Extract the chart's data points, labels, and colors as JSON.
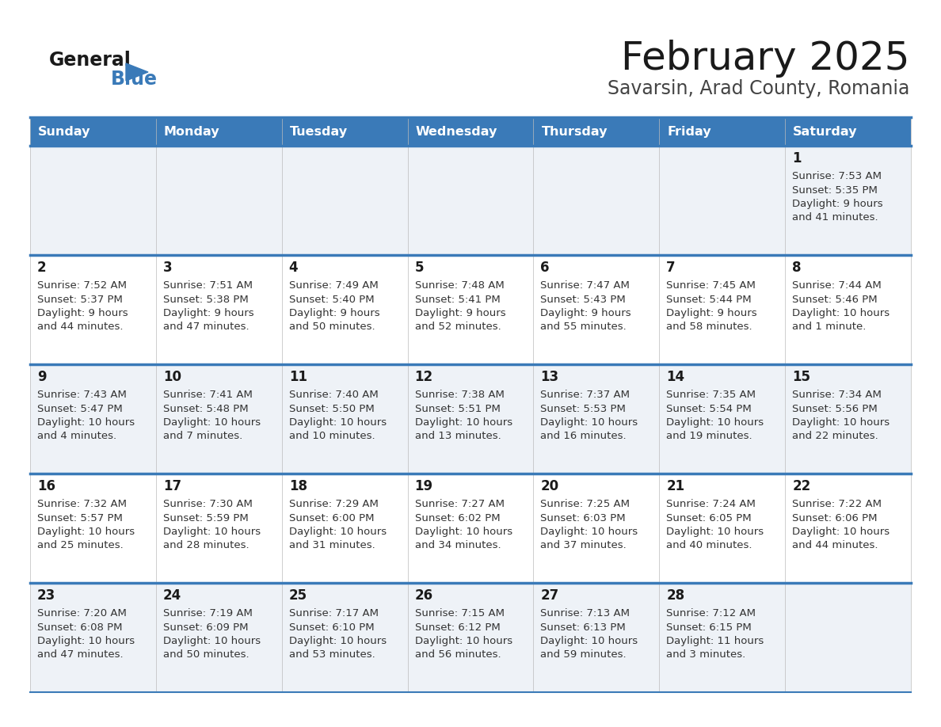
{
  "title": "February 2025",
  "subtitle": "Savarsin, Arad County, Romania",
  "days_of_week": [
    "Sunday",
    "Monday",
    "Tuesday",
    "Wednesday",
    "Thursday",
    "Friday",
    "Saturday"
  ],
  "header_bg_color": "#3a7ab8",
  "header_text_color": "#ffffff",
  "cell_bg_odd": "#eef2f7",
  "cell_bg_even": "#ffffff",
  "grid_line_color": "#3a7ab8",
  "day_number_color": "#1a1a1a",
  "text_color": "#333333",
  "title_color": "#1a1a1a",
  "subtitle_color": "#444444",
  "logo_black": "#1a1a1a",
  "logo_blue": "#3a7ab8",
  "calendar_data": [
    [
      null,
      null,
      null,
      null,
      null,
      null,
      {
        "day": "1",
        "sunrise": "7:53 AM",
        "sunset": "5:35 PM",
        "dl1": "Daylight: 9 hours",
        "dl2": "and 41 minutes."
      }
    ],
    [
      {
        "day": "2",
        "sunrise": "7:52 AM",
        "sunset": "5:37 PM",
        "dl1": "Daylight: 9 hours",
        "dl2": "and 44 minutes."
      },
      {
        "day": "3",
        "sunrise": "7:51 AM",
        "sunset": "5:38 PM",
        "dl1": "Daylight: 9 hours",
        "dl2": "and 47 minutes."
      },
      {
        "day": "4",
        "sunrise": "7:49 AM",
        "sunset": "5:40 PM",
        "dl1": "Daylight: 9 hours",
        "dl2": "and 50 minutes."
      },
      {
        "day": "5",
        "sunrise": "7:48 AM",
        "sunset": "5:41 PM",
        "dl1": "Daylight: 9 hours",
        "dl2": "and 52 minutes."
      },
      {
        "day": "6",
        "sunrise": "7:47 AM",
        "sunset": "5:43 PM",
        "dl1": "Daylight: 9 hours",
        "dl2": "and 55 minutes."
      },
      {
        "day": "7",
        "sunrise": "7:45 AM",
        "sunset": "5:44 PM",
        "dl1": "Daylight: 9 hours",
        "dl2": "and 58 minutes."
      },
      {
        "day": "8",
        "sunrise": "7:44 AM",
        "sunset": "5:46 PM",
        "dl1": "Daylight: 10 hours",
        "dl2": "and 1 minute."
      }
    ],
    [
      {
        "day": "9",
        "sunrise": "7:43 AM",
        "sunset": "5:47 PM",
        "dl1": "Daylight: 10 hours",
        "dl2": "and 4 minutes."
      },
      {
        "day": "10",
        "sunrise": "7:41 AM",
        "sunset": "5:48 PM",
        "dl1": "Daylight: 10 hours",
        "dl2": "and 7 minutes."
      },
      {
        "day": "11",
        "sunrise": "7:40 AM",
        "sunset": "5:50 PM",
        "dl1": "Daylight: 10 hours",
        "dl2": "and 10 minutes."
      },
      {
        "day": "12",
        "sunrise": "7:38 AM",
        "sunset": "5:51 PM",
        "dl1": "Daylight: 10 hours",
        "dl2": "and 13 minutes."
      },
      {
        "day": "13",
        "sunrise": "7:37 AM",
        "sunset": "5:53 PM",
        "dl1": "Daylight: 10 hours",
        "dl2": "and 16 minutes."
      },
      {
        "day": "14",
        "sunrise": "7:35 AM",
        "sunset": "5:54 PM",
        "dl1": "Daylight: 10 hours",
        "dl2": "and 19 minutes."
      },
      {
        "day": "15",
        "sunrise": "7:34 AM",
        "sunset": "5:56 PM",
        "dl1": "Daylight: 10 hours",
        "dl2": "and 22 minutes."
      }
    ],
    [
      {
        "day": "16",
        "sunrise": "7:32 AM",
        "sunset": "5:57 PM",
        "dl1": "Daylight: 10 hours",
        "dl2": "and 25 minutes."
      },
      {
        "day": "17",
        "sunrise": "7:30 AM",
        "sunset": "5:59 PM",
        "dl1": "Daylight: 10 hours",
        "dl2": "and 28 minutes."
      },
      {
        "day": "18",
        "sunrise": "7:29 AM",
        "sunset": "6:00 PM",
        "dl1": "Daylight: 10 hours",
        "dl2": "and 31 minutes."
      },
      {
        "day": "19",
        "sunrise": "7:27 AM",
        "sunset": "6:02 PM",
        "dl1": "Daylight: 10 hours",
        "dl2": "and 34 minutes."
      },
      {
        "day": "20",
        "sunrise": "7:25 AM",
        "sunset": "6:03 PM",
        "dl1": "Daylight: 10 hours",
        "dl2": "and 37 minutes."
      },
      {
        "day": "21",
        "sunrise": "7:24 AM",
        "sunset": "6:05 PM",
        "dl1": "Daylight: 10 hours",
        "dl2": "and 40 minutes."
      },
      {
        "day": "22",
        "sunrise": "7:22 AM",
        "sunset": "6:06 PM",
        "dl1": "Daylight: 10 hours",
        "dl2": "and 44 minutes."
      }
    ],
    [
      {
        "day": "23",
        "sunrise": "7:20 AM",
        "sunset": "6:08 PM",
        "dl1": "Daylight: 10 hours",
        "dl2": "and 47 minutes."
      },
      {
        "day": "24",
        "sunrise": "7:19 AM",
        "sunset": "6:09 PM",
        "dl1": "Daylight: 10 hours",
        "dl2": "and 50 minutes."
      },
      {
        "day": "25",
        "sunrise": "7:17 AM",
        "sunset": "6:10 PM",
        "dl1": "Daylight: 10 hours",
        "dl2": "and 53 minutes."
      },
      {
        "day": "26",
        "sunrise": "7:15 AM",
        "sunset": "6:12 PM",
        "dl1": "Daylight: 10 hours",
        "dl2": "and 56 minutes."
      },
      {
        "day": "27",
        "sunrise": "7:13 AM",
        "sunset": "6:13 PM",
        "dl1": "Daylight: 10 hours",
        "dl2": "and 59 minutes."
      },
      {
        "day": "28",
        "sunrise": "7:12 AM",
        "sunset": "6:15 PM",
        "dl1": "Daylight: 11 hours",
        "dl2": "and 3 minutes."
      },
      null
    ]
  ]
}
